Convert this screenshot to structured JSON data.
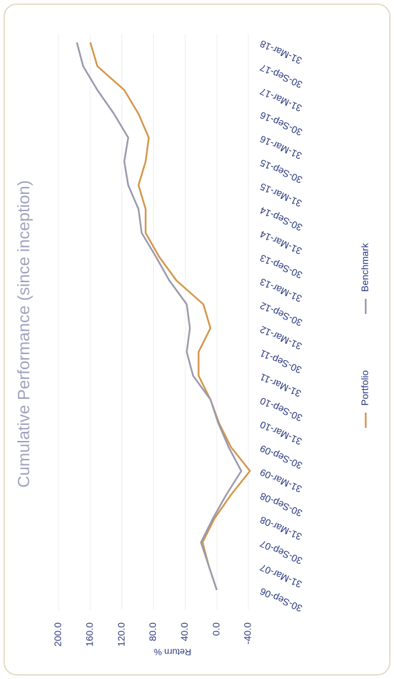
{
  "chart_data": {
    "type": "line",
    "title": "Cumulative Performance (since inception)",
    "y_label": "Return %",
    "categories": [
      "30-Sep-06",
      "31-Mar-07",
      "30-Sep-07",
      "31-Mar-08",
      "30-Sep-08",
      "31-Mar-09",
      "30-Sep-09",
      "31-Mar-10",
      "30-Sep-10",
      "31-Mar-11",
      "30-Sep-11",
      "31-Mar-12",
      "30-Sep-12",
      "31-Mar-13",
      "30-Sep-13",
      "31-Mar-14",
      "30-Sep-14",
      "31-Mar-15",
      "30-Sep-15",
      "31-Mar-16",
      "30-Sep-16",
      "31-Mar-17",
      "30-Sep-17",
      "31-Mar-18"
    ],
    "series": [
      {
        "name": "Portfolio",
        "color": "#d4954a",
        "values": [
          0,
          10,
          18,
          3,
          -18,
          -42,
          -18,
          -3,
          8,
          23,
          23,
          8,
          17,
          51,
          73,
          90,
          90,
          99,
          90,
          86,
          99,
          117,
          151,
          160
        ]
      },
      {
        "name": "Benchmark",
        "color": "#9a9aae",
        "values": [
          0,
          10,
          20,
          5,
          -12,
          -31,
          -15,
          -2,
          8,
          30,
          38,
          34,
          38,
          60,
          77,
          95,
          99,
          112,
          117,
          112,
          130,
          151,
          169,
          177
        ]
      }
    ],
    "ylim": [
      -40,
      200
    ],
    "yticks": [
      {
        "value": 200,
        "label": "200.0"
      },
      {
        "value": 160,
        "label": "160.0"
      },
      {
        "value": 120,
        "label": "120.0"
      },
      {
        "value": 80,
        "label": "80.0"
      },
      {
        "value": 40,
        "label": "40.0"
      },
      {
        "value": 0,
        "label": "0.0"
      },
      {
        "value": -40,
        "label": "-40.0"
      }
    ],
    "grid": true,
    "legend": "bottom"
  }
}
